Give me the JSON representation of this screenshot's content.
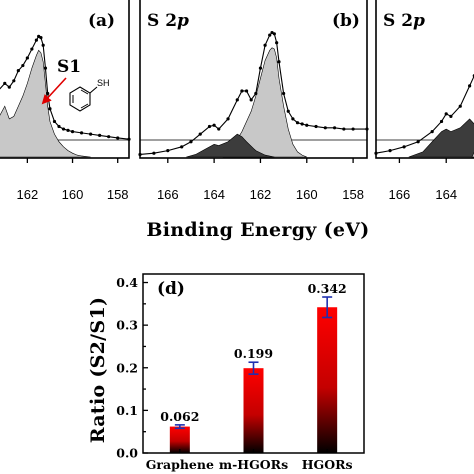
{
  "axis_titles": {
    "xps_x": "Binding Energy (eV)",
    "bar_y": "Ratio (S2/S1)"
  },
  "chart_data": [
    {
      "type": "line",
      "panel": "(a)",
      "x_ticks": [
        162,
        160,
        158
      ],
      "xlim": [
        163.3,
        157.5
      ],
      "annotation": "S1",
      "inset_molecule_label": "SH",
      "series": [
        {
          "role": "measured",
          "x": [
            163.3,
            163.0,
            162.8,
            162.6,
            162.4,
            162.2,
            162.0,
            161.8,
            161.6,
            161.5,
            161.4,
            161.3,
            161.2,
            161.1,
            161.0,
            160.8,
            160.6,
            160.4,
            160.2,
            160.0,
            159.6,
            159.2,
            158.8,
            158.4,
            158.0,
            157.5
          ],
          "y": [
            0.52,
            0.58,
            0.55,
            0.6,
            0.68,
            0.72,
            0.78,
            0.85,
            0.92,
            0.95,
            0.94,
            0.88,
            0.7,
            0.5,
            0.38,
            0.28,
            0.24,
            0.22,
            0.21,
            0.2,
            0.19,
            0.18,
            0.17,
            0.16,
            0.15,
            0.14
          ]
        },
        {
          "role": "S1 component",
          "x": [
            163.3,
            163.0,
            162.8,
            162.6,
            162.4,
            162.2,
            162.0,
            161.8,
            161.6,
            161.5,
            161.4,
            161.3,
            161.2,
            161.1,
            161.0,
            160.8,
            160.6,
            160.4,
            160.2,
            160.0,
            159.8,
            159.6,
            159.4,
            159.2
          ],
          "y": [
            0.3,
            0.4,
            0.3,
            0.32,
            0.4,
            0.48,
            0.58,
            0.7,
            0.8,
            0.84,
            0.82,
            0.75,
            0.58,
            0.4,
            0.28,
            0.18,
            0.12,
            0.08,
            0.05,
            0.03,
            0.015,
            0.008,
            0.004,
            0.0
          ]
        }
      ]
    },
    {
      "type": "line",
      "panel": "(b)",
      "title": "S 2p",
      "x_ticks": [
        166,
        164,
        162,
        160,
        158
      ],
      "xlim": [
        167.2,
        157.4
      ],
      "series": [
        {
          "role": "measured",
          "x": [
            167.2,
            166.6,
            166.0,
            165.4,
            165.0,
            164.6,
            164.2,
            164.0,
            163.8,
            163.4,
            163.0,
            162.8,
            162.6,
            162.4,
            162.2,
            162.0,
            161.8,
            161.6,
            161.5,
            161.4,
            161.3,
            161.2,
            161.0,
            160.8,
            160.6,
            160.4,
            160.2,
            160.0,
            159.6,
            159.2,
            158.8,
            158.4,
            158.0,
            157.4
          ],
          "y": [
            0.02,
            0.03,
            0.05,
            0.08,
            0.12,
            0.18,
            0.24,
            0.25,
            0.22,
            0.3,
            0.45,
            0.52,
            0.52,
            0.45,
            0.5,
            0.7,
            0.88,
            0.96,
            0.98,
            0.97,
            0.9,
            0.75,
            0.5,
            0.36,
            0.3,
            0.27,
            0.26,
            0.25,
            0.24,
            0.23,
            0.23,
            0.22,
            0.22,
            0.22
          ]
        },
        {
          "role": "S1 component",
          "x": [
            163.6,
            163.2,
            162.8,
            162.4,
            162.2,
            162.0,
            161.8,
            161.6,
            161.5,
            161.4,
            161.3,
            161.2,
            161.0,
            160.8,
            160.6,
            160.4,
            160.2,
            160.0
          ],
          "y": [
            0.0,
            0.08,
            0.2,
            0.36,
            0.48,
            0.62,
            0.76,
            0.84,
            0.86,
            0.85,
            0.78,
            0.62,
            0.4,
            0.22,
            0.1,
            0.04,
            0.015,
            0.0
          ]
        },
        {
          "role": "S2 component",
          "x": [
            165.2,
            164.8,
            164.4,
            164.0,
            163.8,
            163.4,
            163.0,
            162.8,
            162.6,
            162.2,
            161.8,
            161.4
          ],
          "y": [
            0.0,
            0.02,
            0.06,
            0.1,
            0.09,
            0.12,
            0.18,
            0.16,
            0.12,
            0.05,
            0.015,
            0.0
          ]
        }
      ]
    },
    {
      "type": "line",
      "panel": "(c)",
      "title": "S 2p",
      "x_ticks": [
        166,
        164
      ],
      "xlim": [
        167.0,
        162.3
      ],
      "series": [
        {
          "role": "measured",
          "x": [
            167.0,
            166.4,
            165.8,
            165.2,
            164.6,
            164.2,
            164.0,
            163.8,
            163.4,
            163.0,
            162.8,
            162.6,
            162.4,
            162.3
          ],
          "y": [
            0.03,
            0.05,
            0.08,
            0.12,
            0.2,
            0.28,
            0.34,
            0.32,
            0.4,
            0.56,
            0.64,
            0.7,
            0.84,
            0.96
          ]
        },
        {
          "role": "S2 component",
          "x": [
            165.6,
            165.0,
            164.6,
            164.2,
            164.0,
            163.8,
            163.4,
            163.0,
            162.8,
            162.6,
            162.4,
            162.3
          ],
          "y": [
            0.0,
            0.04,
            0.12,
            0.2,
            0.22,
            0.2,
            0.23,
            0.3,
            0.26,
            0.2,
            0.14,
            0.1
          ]
        },
        {
          "role": "S1 component",
          "x": [
            162.9,
            162.7,
            162.5,
            162.3
          ],
          "y": [
            0.0,
            0.08,
            0.18,
            0.3
          ]
        }
      ]
    },
    {
      "type": "bar",
      "panel": "(d)",
      "ylabel": "Ratio (S2/S1)",
      "ylim": [
        0,
        0.42
      ],
      "y_ticks": [
        "0.0",
        "0.1",
        "0.2",
        "0.3",
        "0.4"
      ],
      "categories": [
        "Graphene",
        "m-HGORs",
        "HGORs"
      ],
      "values": [
        0.062,
        0.199,
        0.342
      ],
      "value_labels": [
        "0.062",
        "0.199",
        "0.342"
      ],
      "errors": [
        0.004,
        0.014,
        0.024
      ],
      "colors": {
        "bar_top": "#ff0000",
        "bar_bottom": "#000000",
        "error_bar": "#1f2fb0",
        "s1_fill": "#c8c8c8",
        "s2_fill": "#3c3c3c",
        "arrow": "#e00000"
      }
    }
  ]
}
